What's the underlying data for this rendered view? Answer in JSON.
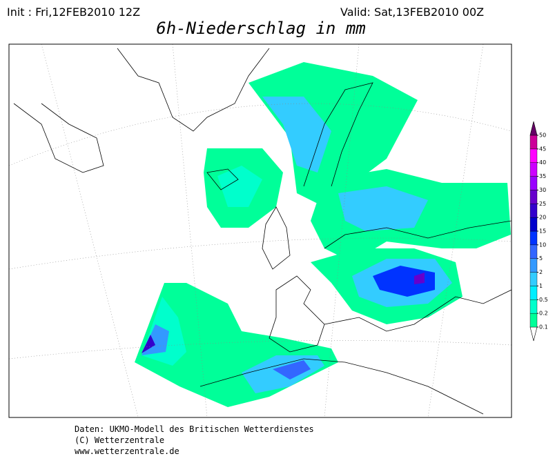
{
  "header": {
    "init": "Init : Fri,12FEB2010 12Z",
    "valid": "Valid: Sat,13FEB2010 00Z",
    "title": "6h-Niederschlag in mm"
  },
  "legend": {
    "levels": [
      0.1,
      0.2,
      0.5,
      1,
      2,
      5,
      10,
      15,
      20,
      25,
      30,
      35,
      40,
      45,
      50
    ],
    "colors": [
      "#ffffff",
      "#00ff99",
      "#00ffcc",
      "#00eeff",
      "#33ccff",
      "#3399ff",
      "#3366ff",
      "#0033ff",
      "#0000cc",
      "#3300cc",
      "#6600cc",
      "#9900ff",
      "#cc00ff",
      "#ff00ff",
      "#cc0099",
      "#660066"
    ]
  },
  "footer": {
    "lines": [
      "Daten: UKMO-Modell des Britischen Wetterdienstes",
      "(C) Wetterzentrale",
      "www.wetterzentrale.de"
    ]
  }
}
